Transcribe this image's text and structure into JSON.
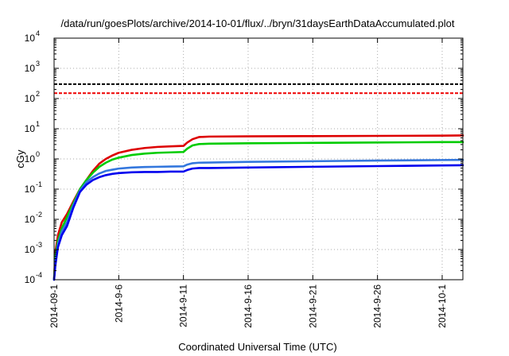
{
  "chart_data": {
    "type": "line",
    "title": "/data/run/goesPlots/archive/2014-10-01/flux/../bryn/31daysEarthDataAccumulated.plot",
    "xlabel": "Coordinated Universal Time (UTC)",
    "ylabel": "cGy",
    "x_range_days_from_sep1": [
      0,
      31.6
    ],
    "xlim": [
      "2014-09-01",
      "2014-10-02 14:24"
    ],
    "ylim": [
      0.0001,
      10000
    ],
    "yscale": "log",
    "grid": true,
    "legend": "none",
    "x_ticks": [
      {
        "label": "2014-09-1",
        "day": 0
      },
      {
        "label": "2014-9-6",
        "day": 5
      },
      {
        "label": "2014-9-11",
        "day": 10
      },
      {
        "label": "2014-9-16",
        "day": 15
      },
      {
        "label": "2014-9-21",
        "day": 20
      },
      {
        "label": "2014-9-26",
        "day": 25
      },
      {
        "label": "2014-10-1",
        "day": 30
      }
    ],
    "y_ticks": [
      {
        "base": "10",
        "exp": "4",
        "value": 10000
      },
      {
        "base": "10",
        "exp": "3",
        "value": 1000
      },
      {
        "base": "10",
        "exp": "2",
        "value": 100
      },
      {
        "base": "10",
        "exp": "1",
        "value": 10
      },
      {
        "base": "10",
        "exp": "0",
        "value": 1
      },
      {
        "base": "10",
        "exp": "-1",
        "value": 0.1
      },
      {
        "base": "10",
        "exp": "-2",
        "value": 0.01
      },
      {
        "base": "10",
        "exp": "-3",
        "value": 0.001
      },
      {
        "base": "10",
        "exp": "-4",
        "value": 0.0001
      }
    ],
    "thresholds": [
      {
        "value": 300,
        "color": "#000000"
      },
      {
        "value": 150,
        "color": "#ee0000"
      }
    ],
    "series": [
      {
        "color": "#dd0000",
        "points": [
          [
            0,
            0.0001
          ],
          [
            0.1,
            0.0008
          ],
          [
            0.3,
            0.003
          ],
          [
            0.6,
            0.008
          ],
          [
            1,
            0.015
          ],
          [
            1.5,
            0.04
          ],
          [
            2,
            0.1
          ],
          [
            2.5,
            0.2
          ],
          [
            3,
            0.4
          ],
          [
            3.5,
            0.7
          ],
          [
            4,
            1.0
          ],
          [
            4.5,
            1.3
          ],
          [
            5,
            1.6
          ],
          [
            6,
            2.0
          ],
          [
            7,
            2.3
          ],
          [
            8,
            2.5
          ],
          [
            9,
            2.6
          ],
          [
            10,
            2.7
          ],
          [
            10.3,
            3.5
          ],
          [
            10.7,
            4.5
          ],
          [
            11.2,
            5.3
          ],
          [
            12,
            5.5
          ],
          [
            15,
            5.6
          ],
          [
            20,
            5.7
          ],
          [
            25,
            5.8
          ],
          [
            30,
            5.9
          ],
          [
            31.6,
            6.0
          ]
        ]
      },
      {
        "color": "#00cc00",
        "points": [
          [
            0,
            0.0001
          ],
          [
            0.1,
            0.0006
          ],
          [
            0.3,
            0.002
          ],
          [
            0.6,
            0.005
          ],
          [
            1,
            0.012
          ],
          [
            1.5,
            0.035
          ],
          [
            2,
            0.1
          ],
          [
            2.5,
            0.2
          ],
          [
            3,
            0.35
          ],
          [
            3.5,
            0.55
          ],
          [
            4,
            0.75
          ],
          [
            4.5,
            0.95
          ],
          [
            5,
            1.1
          ],
          [
            6,
            1.35
          ],
          [
            7,
            1.5
          ],
          [
            8,
            1.6
          ],
          [
            9,
            1.65
          ],
          [
            10,
            1.7
          ],
          [
            10.3,
            2.2
          ],
          [
            10.7,
            2.8
          ],
          [
            11.2,
            3.1
          ],
          [
            12,
            3.2
          ],
          [
            15,
            3.3
          ],
          [
            20,
            3.4
          ],
          [
            25,
            3.5
          ],
          [
            30,
            3.6
          ],
          [
            31.6,
            3.6
          ]
        ]
      },
      {
        "color": "#3377dd",
        "points": [
          [
            0,
            0.0001
          ],
          [
            0.1,
            0.0004
          ],
          [
            0.3,
            0.0015
          ],
          [
            0.6,
            0.004
          ],
          [
            1,
            0.008
          ],
          [
            1.5,
            0.03
          ],
          [
            2,
            0.09
          ],
          [
            2.5,
            0.17
          ],
          [
            3,
            0.25
          ],
          [
            3.5,
            0.33
          ],
          [
            4,
            0.4
          ],
          [
            4.5,
            0.44
          ],
          [
            5,
            0.48
          ],
          [
            6,
            0.52
          ],
          [
            7,
            0.54
          ],
          [
            8,
            0.55
          ],
          [
            9,
            0.56
          ],
          [
            10,
            0.57
          ],
          [
            10.3,
            0.65
          ],
          [
            10.7,
            0.72
          ],
          [
            11.2,
            0.75
          ],
          [
            12,
            0.76
          ],
          [
            15,
            0.8
          ],
          [
            20,
            0.84
          ],
          [
            25,
            0.88
          ],
          [
            30,
            0.92
          ],
          [
            31.6,
            0.93
          ]
        ]
      },
      {
        "color": "#0000ee",
        "points": [
          [
            0,
            0.0001
          ],
          [
            0.1,
            0.0003
          ],
          [
            0.3,
            0.0012
          ],
          [
            0.6,
            0.003
          ],
          [
            1,
            0.006
          ],
          [
            1.5,
            0.025
          ],
          [
            2,
            0.08
          ],
          [
            2.5,
            0.14
          ],
          [
            3,
            0.2
          ],
          [
            3.5,
            0.25
          ],
          [
            4,
            0.29
          ],
          [
            4.5,
            0.32
          ],
          [
            5,
            0.34
          ],
          [
            6,
            0.36
          ],
          [
            7,
            0.37
          ],
          [
            8,
            0.37
          ],
          [
            9,
            0.38
          ],
          [
            10,
            0.38
          ],
          [
            10.3,
            0.43
          ],
          [
            10.7,
            0.48
          ],
          [
            11.2,
            0.5
          ],
          [
            12,
            0.5
          ],
          [
            15,
            0.52
          ],
          [
            20,
            0.55
          ],
          [
            25,
            0.58
          ],
          [
            30,
            0.61
          ],
          [
            31.6,
            0.62
          ]
        ]
      }
    ]
  }
}
